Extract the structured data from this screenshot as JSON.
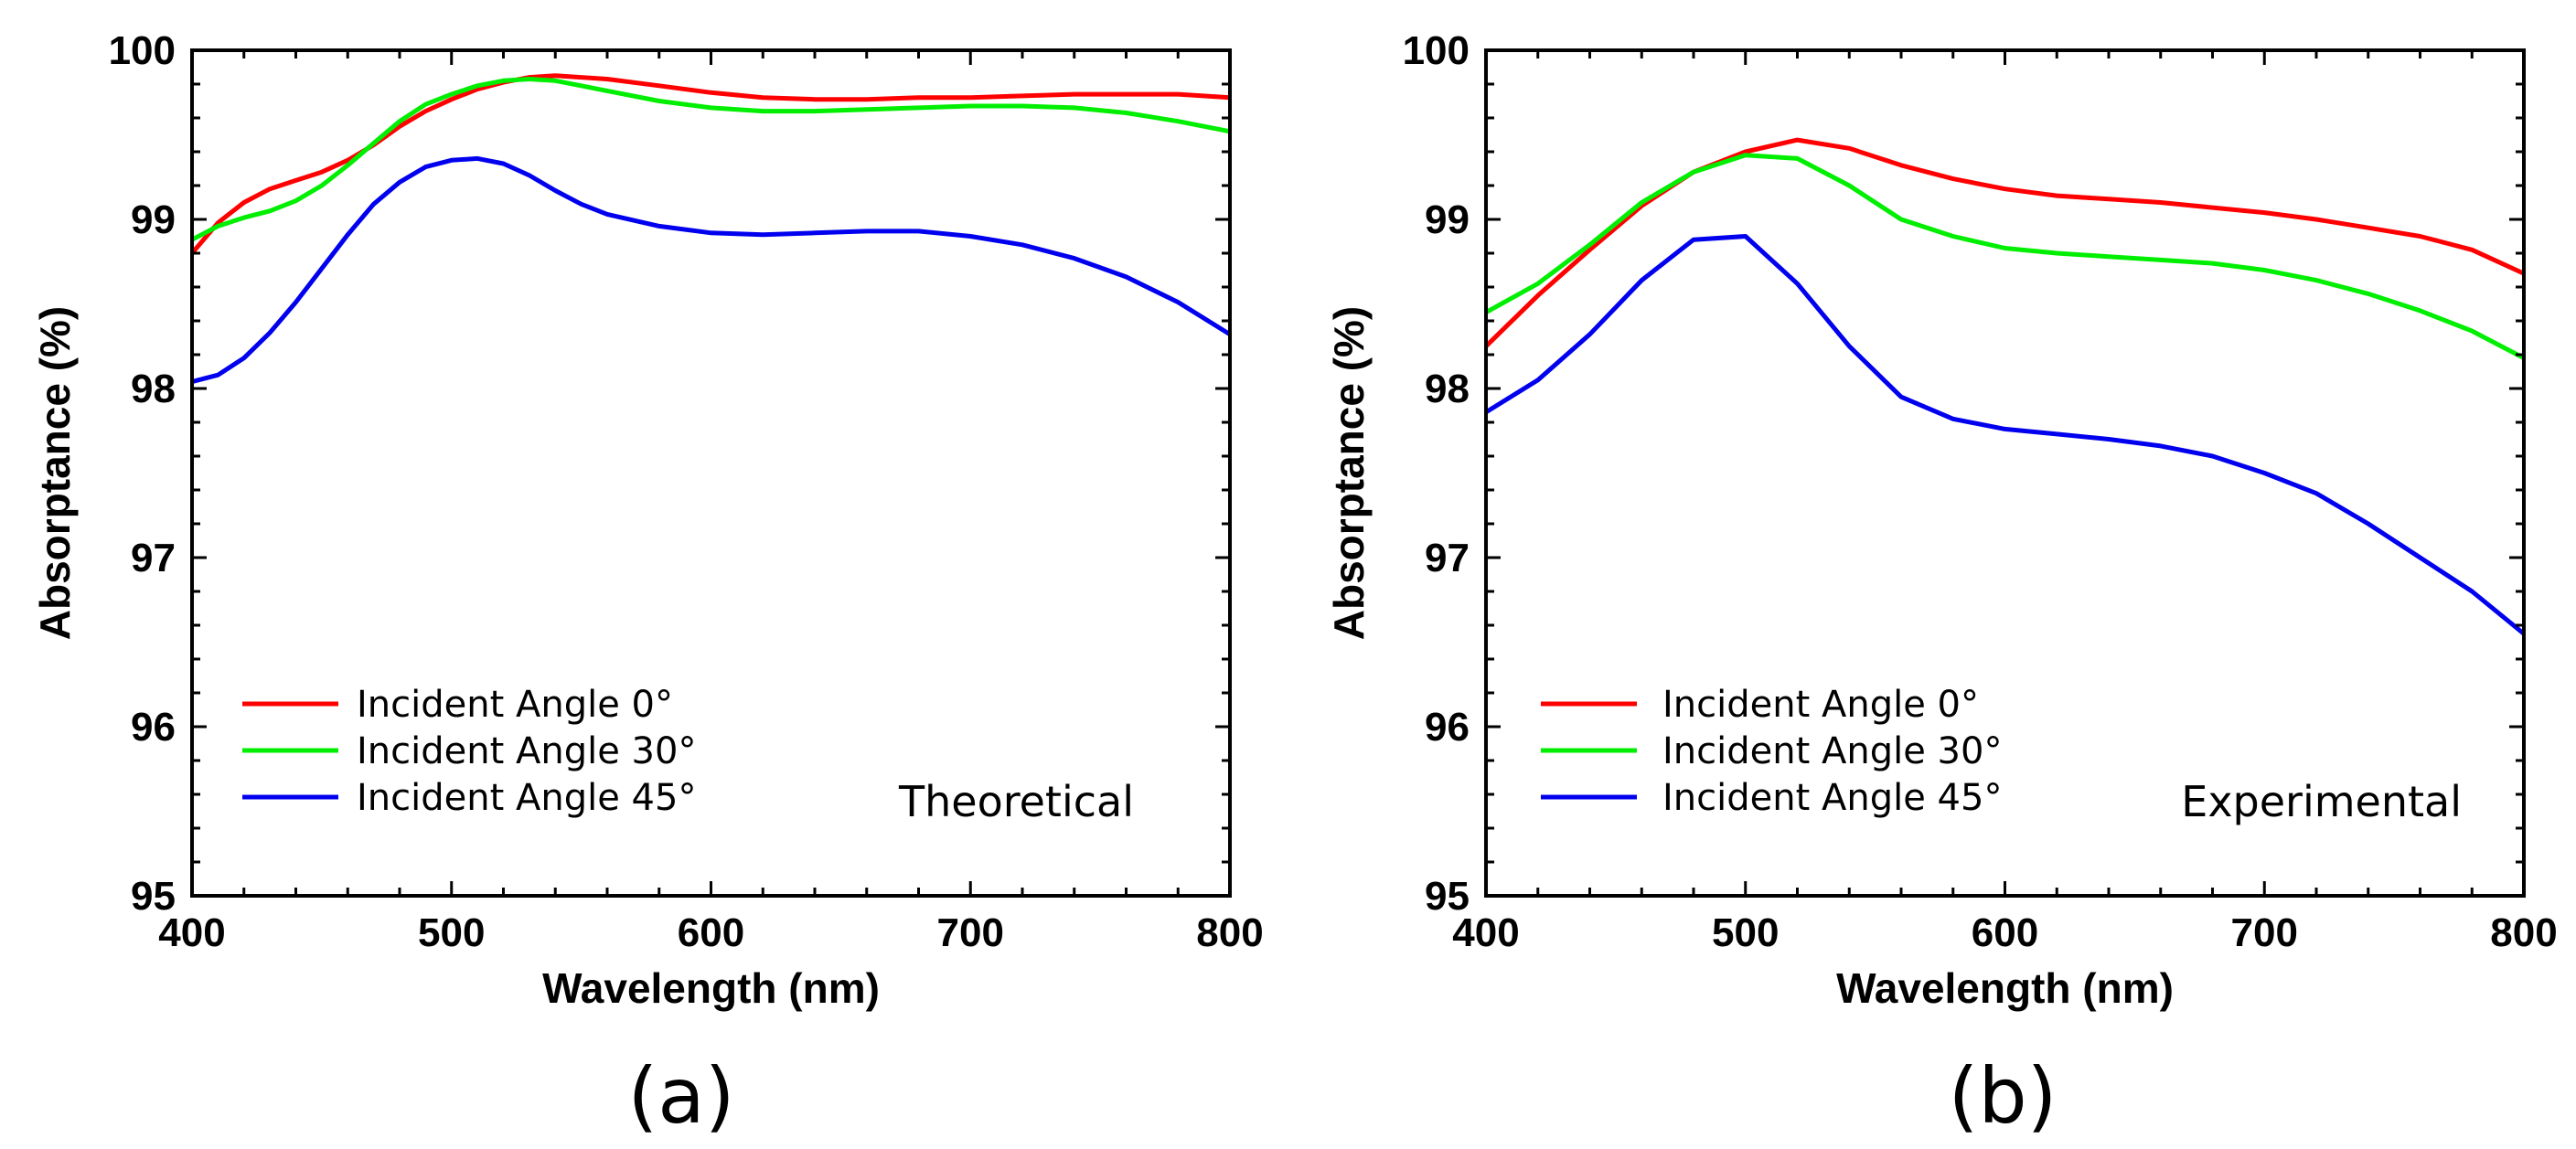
{
  "chart_data": [
    {
      "type": "line",
      "panel_label": "(a)",
      "annotation": "Theoretical",
      "xlabel": "Wavelength (nm)",
      "ylabel": "Absorptance (%)",
      "xlim": [
        400,
        800
      ],
      "ylim": [
        95,
        100
      ],
      "xticks": [
        "400",
        "500",
        "600",
        "700",
        "800"
      ],
      "yticks": [
        "95",
        "96",
        "97",
        "98",
        "99",
        "100"
      ],
      "grid": false,
      "legend_position": "bottom-left",
      "series": [
        {
          "name": "Incident Angle 0°",
          "color": "#ff0000",
          "x": [
            400,
            410,
            420,
            430,
            440,
            450,
            460,
            470,
            480,
            490,
            500,
            510,
            520,
            530,
            540,
            550,
            560,
            580,
            600,
            620,
            640,
            660,
            680,
            700,
            720,
            740,
            760,
            780,
            800
          ],
          "y": [
            98.8,
            98.98,
            99.1,
            99.18,
            99.23,
            99.28,
            99.35,
            99.44,
            99.55,
            99.64,
            99.71,
            99.77,
            99.81,
            99.84,
            99.85,
            99.84,
            99.83,
            99.79,
            99.75,
            99.72,
            99.71,
            99.71,
            99.72,
            99.72,
            99.73,
            99.74,
            99.74,
            99.74,
            99.72
          ]
        },
        {
          "name": "Incident Angle 30°",
          "color": "#00ee00",
          "x": [
            400,
            410,
            420,
            430,
            440,
            450,
            460,
            470,
            480,
            490,
            500,
            510,
            520,
            530,
            540,
            550,
            560,
            580,
            600,
            620,
            640,
            660,
            680,
            700,
            720,
            740,
            760,
            780,
            800
          ],
          "y": [
            98.88,
            98.96,
            99.01,
            99.05,
            99.11,
            99.2,
            99.32,
            99.45,
            99.58,
            99.68,
            99.74,
            99.79,
            99.82,
            99.83,
            99.82,
            99.79,
            99.76,
            99.7,
            99.66,
            99.64,
            99.64,
            99.65,
            99.66,
            99.67,
            99.67,
            99.66,
            99.63,
            99.58,
            99.52
          ]
        },
        {
          "name": "Incident Angle 45°",
          "color": "#0000ee",
          "x": [
            400,
            410,
            420,
            430,
            440,
            450,
            460,
            470,
            480,
            490,
            500,
            510,
            520,
            530,
            540,
            550,
            560,
            580,
            600,
            620,
            640,
            660,
            680,
            700,
            720,
            740,
            760,
            780,
            800
          ],
          "y": [
            98.04,
            98.08,
            98.18,
            98.33,
            98.51,
            98.71,
            98.91,
            99.09,
            99.22,
            99.31,
            99.35,
            99.36,
            99.33,
            99.26,
            99.17,
            99.09,
            99.03,
            98.96,
            98.92,
            98.91,
            98.92,
            98.93,
            98.93,
            98.9,
            98.85,
            98.77,
            98.66,
            98.51,
            98.32
          ]
        }
      ]
    },
    {
      "type": "line",
      "panel_label": "(b)",
      "annotation": "Experimental",
      "xlabel": "Wavelength (nm)",
      "ylabel": "Absorptance (%)",
      "xlim": [
        400,
        800
      ],
      "ylim": [
        95,
        100
      ],
      "xticks": [
        "400",
        "500",
        "600",
        "700",
        "800"
      ],
      "yticks": [
        "95",
        "96",
        "97",
        "98",
        "99",
        "100"
      ],
      "grid": false,
      "legend_position": "bottom-left",
      "series": [
        {
          "name": "Incident Angle 0°",
          "color": "#ff0000",
          "x": [
            400,
            420,
            440,
            460,
            480,
            500,
            520,
            540,
            560,
            580,
            600,
            620,
            640,
            660,
            680,
            700,
            720,
            740,
            760,
            780,
            800
          ],
          "y": [
            98.25,
            98.55,
            98.82,
            99.08,
            99.28,
            99.4,
            99.47,
            99.42,
            99.32,
            99.24,
            99.18,
            99.14,
            99.12,
            99.1,
            99.07,
            99.04,
            99.0,
            98.95,
            98.9,
            98.82,
            98.68
          ]
        },
        {
          "name": "Incident Angle 30°",
          "color": "#00ee00",
          "x": [
            400,
            420,
            440,
            460,
            480,
            500,
            520,
            540,
            560,
            580,
            600,
            620,
            640,
            660,
            680,
            700,
            720,
            740,
            760,
            780,
            800
          ],
          "y": [
            98.45,
            98.62,
            98.85,
            99.1,
            99.28,
            99.38,
            99.36,
            99.2,
            99.0,
            98.9,
            98.83,
            98.8,
            98.78,
            98.76,
            98.74,
            98.7,
            98.64,
            98.56,
            98.46,
            98.34,
            98.18
          ]
        },
        {
          "name": "Incident Angle 45°",
          "color": "#0000ee",
          "x": [
            400,
            420,
            440,
            460,
            480,
            500,
            520,
            540,
            560,
            580,
            600,
            620,
            640,
            660,
            680,
            700,
            720,
            740,
            760,
            780,
            800
          ],
          "y": [
            97.86,
            98.05,
            98.32,
            98.64,
            98.88,
            98.9,
            98.62,
            98.25,
            97.95,
            97.82,
            97.76,
            97.73,
            97.7,
            97.66,
            97.6,
            97.5,
            97.38,
            97.2,
            97.0,
            96.8,
            96.55
          ]
        }
      ]
    }
  ]
}
